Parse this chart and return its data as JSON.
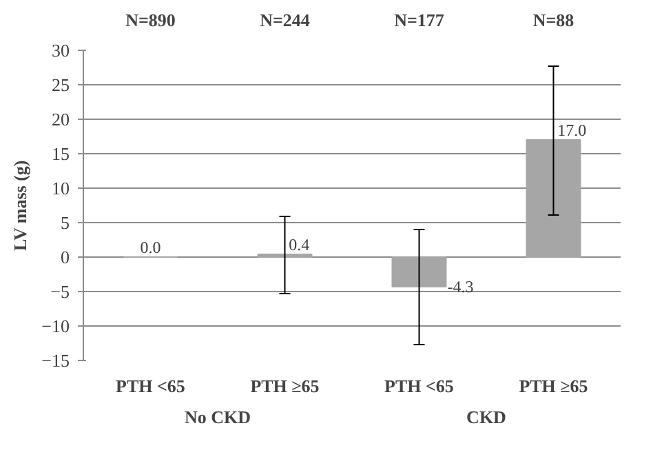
{
  "chart_data": {
    "type": "bar",
    "ylabel": "LV mass (g)",
    "categories": [
      "PTH <65",
      "PTH ≥65",
      "PTH <65",
      "PTH ≥65"
    ],
    "values": [
      0.0,
      0.4,
      -4.3,
      17.0
    ],
    "value_labels": [
      "0.0",
      "0.4",
      "-4.3",
      "17.0"
    ],
    "errors": [
      null,
      [
        -5.3,
        5.9
      ],
      [
        -12.7,
        4.0
      ],
      [
        6.1,
        27.7
      ]
    ],
    "color": "#a6a6a6",
    "ylim": [
      -15,
      30
    ],
    "yticks": [
      -15,
      -10,
      -5,
      0,
      5,
      10,
      15,
      20,
      25,
      30
    ],
    "grid": "y",
    "annotations": [
      "N=890",
      "N=244",
      "N=177",
      "N=88",
      "No CKD",
      "CKD"
    ]
  }
}
